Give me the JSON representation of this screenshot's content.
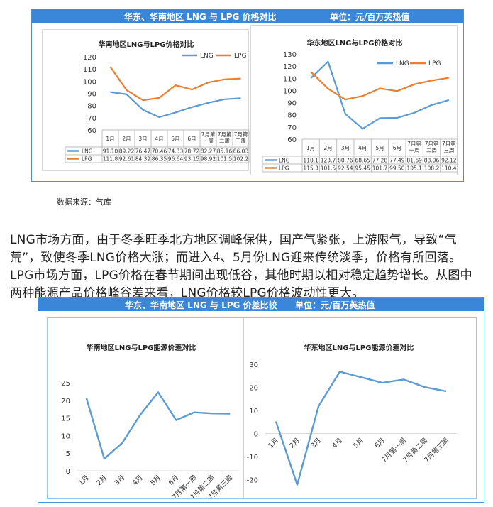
{
  "panel1": {
    "header_title": "华东、华南地区 LNG 与 LPG 价格对比",
    "header_unit": "单位：元/百万英热值"
  },
  "source_note": "数据来源：气库",
  "paragraph": "LNG市场方面，由于冬季旺季北方地区调峰保供，国产气紧张，上游限气，导致“气荒”，致使冬季LNG价格大涨；而进入4、5月份LNG迎来传统淡季，价格有所回落。LPG市场方面，LPG价格在春节期间出现低谷，其他时期以相对稳定趋势增长。从图中两种能源产品价格峰谷差来看，LNG价格较LPG价格波动性更大。",
  "panel2": {
    "header_title": "华东、华南地区 LNG 与 LPG 价差比较",
    "header_unit": "单位：元/百万英热值"
  },
  "colors": {
    "lng": "#5b9bd5",
    "lpg": "#ed7d31",
    "header": "#3a86d9"
  },
  "chart_data": [
    {
      "type": "line",
      "title": "华南地区LNG与LPG价格对比",
      "categories": [
        "1月",
        "2月",
        "3月",
        "4月",
        "5月",
        "6月",
        "7月第一周",
        "7月第二周",
        "7月第三周"
      ],
      "category_lines": [
        [
          "1月"
        ],
        [
          "2月"
        ],
        [
          "3月"
        ],
        [
          "4月"
        ],
        [
          "5月"
        ],
        [
          "6月"
        ],
        [
          "7月第",
          "一周"
        ],
        [
          "7月第",
          "二周"
        ],
        [
          "7月第",
          "三周"
        ]
      ],
      "series": [
        {
          "name": "LNG",
          "values": [
            91.1,
            89.22,
            76.47,
            70.46,
            74.33,
            78.72,
            82.27,
            85.16,
            86.03
          ],
          "labels": [
            "91.10",
            "89.22",
            "76.47",
            "70.46",
            "74.33",
            "78.72",
            "82.27",
            "85.16",
            "86.03"
          ]
        },
        {
          "name": "LPG",
          "values": [
            111.8,
            92.61,
            84.39,
            86.35,
            96.64,
            93.15,
            98.92,
            101.5,
            102.2
          ],
          "labels": [
            "111.8",
            "92.61",
            "84.39",
            "86.35",
            "96.64",
            "93.15",
            "98.92",
            "101.5",
            "102.2"
          ]
        }
      ],
      "ylim": [
        60,
        120
      ],
      "yticks": [
        60,
        70,
        80,
        90,
        100,
        110,
        120
      ],
      "legend": "top-right",
      "data_table": true
    },
    {
      "type": "line",
      "title": "华东地区LNG与LPG价格对比",
      "categories": [
        "1月",
        "2月",
        "3月",
        "4月",
        "5月",
        "6月",
        "7月第一周",
        "7月第二周",
        "7月第三周"
      ],
      "category_lines": [
        [
          "1月"
        ],
        [
          "2月"
        ],
        [
          "3月"
        ],
        [
          "4月"
        ],
        [
          "5月"
        ],
        [
          "6月"
        ],
        [
          "7月第",
          "一周"
        ],
        [
          "7月第",
          "二周"
        ],
        [
          "7月第",
          "三周"
        ]
      ],
      "series": [
        {
          "name": "LNG",
          "values": [
            110.1,
            123.7,
            80.76,
            68.65,
            77.28,
            77.49,
            81.69,
            88.06,
            92.12
          ],
          "labels": [
            "110.1",
            "123.7",
            "80.76",
            "68.65",
            "77.28",
            "77.49",
            "81.69",
            "88.06",
            "92.12"
          ]
        },
        {
          "name": "LPG",
          "values": [
            115.3,
            101.5,
            92.54,
            95.45,
            101.7,
            99.5,
            105.1,
            108.2,
            110.4
          ],
          "labels": [
            "115.3",
            "101.5",
            "92.54",
            "95.45",
            "101.7",
            "99.50",
            "105.1",
            "108.2",
            "110.4"
          ]
        }
      ],
      "ylim": [
        60,
        130
      ],
      "yticks": [
        60,
        70,
        80,
        90,
        100,
        110,
        120,
        130
      ],
      "legend": "top-right",
      "data_table": true
    },
    {
      "type": "line",
      "title": "华南地区LNG与LPG能源价差对比",
      "categories": [
        "1月",
        "2月",
        "3月",
        "4月",
        "5月",
        "6月",
        "7月第一周",
        "7月第二周",
        "7月第三周"
      ],
      "series": [
        {
          "values": [
            20.7,
            3.4,
            7.9,
            15.9,
            22.3,
            14.4,
            16.6,
            16.3,
            16.2
          ]
        }
      ],
      "ylim": [
        0,
        25
      ],
      "yticks": [
        0,
        5,
        10,
        15,
        20,
        25
      ]
    },
    {
      "type": "line",
      "title": "华东地区LNG与LPG能源价差对比",
      "categories": [
        "1月",
        "2月",
        "3月",
        "4月",
        "5月",
        "6月",
        "7月第一周",
        "7月第二周",
        "7月第三周"
      ],
      "series": [
        {
          "values": [
            5.2,
            -22.2,
            11.8,
            26.8,
            24.4,
            22.0,
            23.4,
            20.1,
            18.3
          ]
        }
      ],
      "ylim": [
        -30,
        30
      ],
      "yticks": [
        -30,
        -20,
        -10,
        0,
        10,
        20,
        30
      ]
    }
  ]
}
